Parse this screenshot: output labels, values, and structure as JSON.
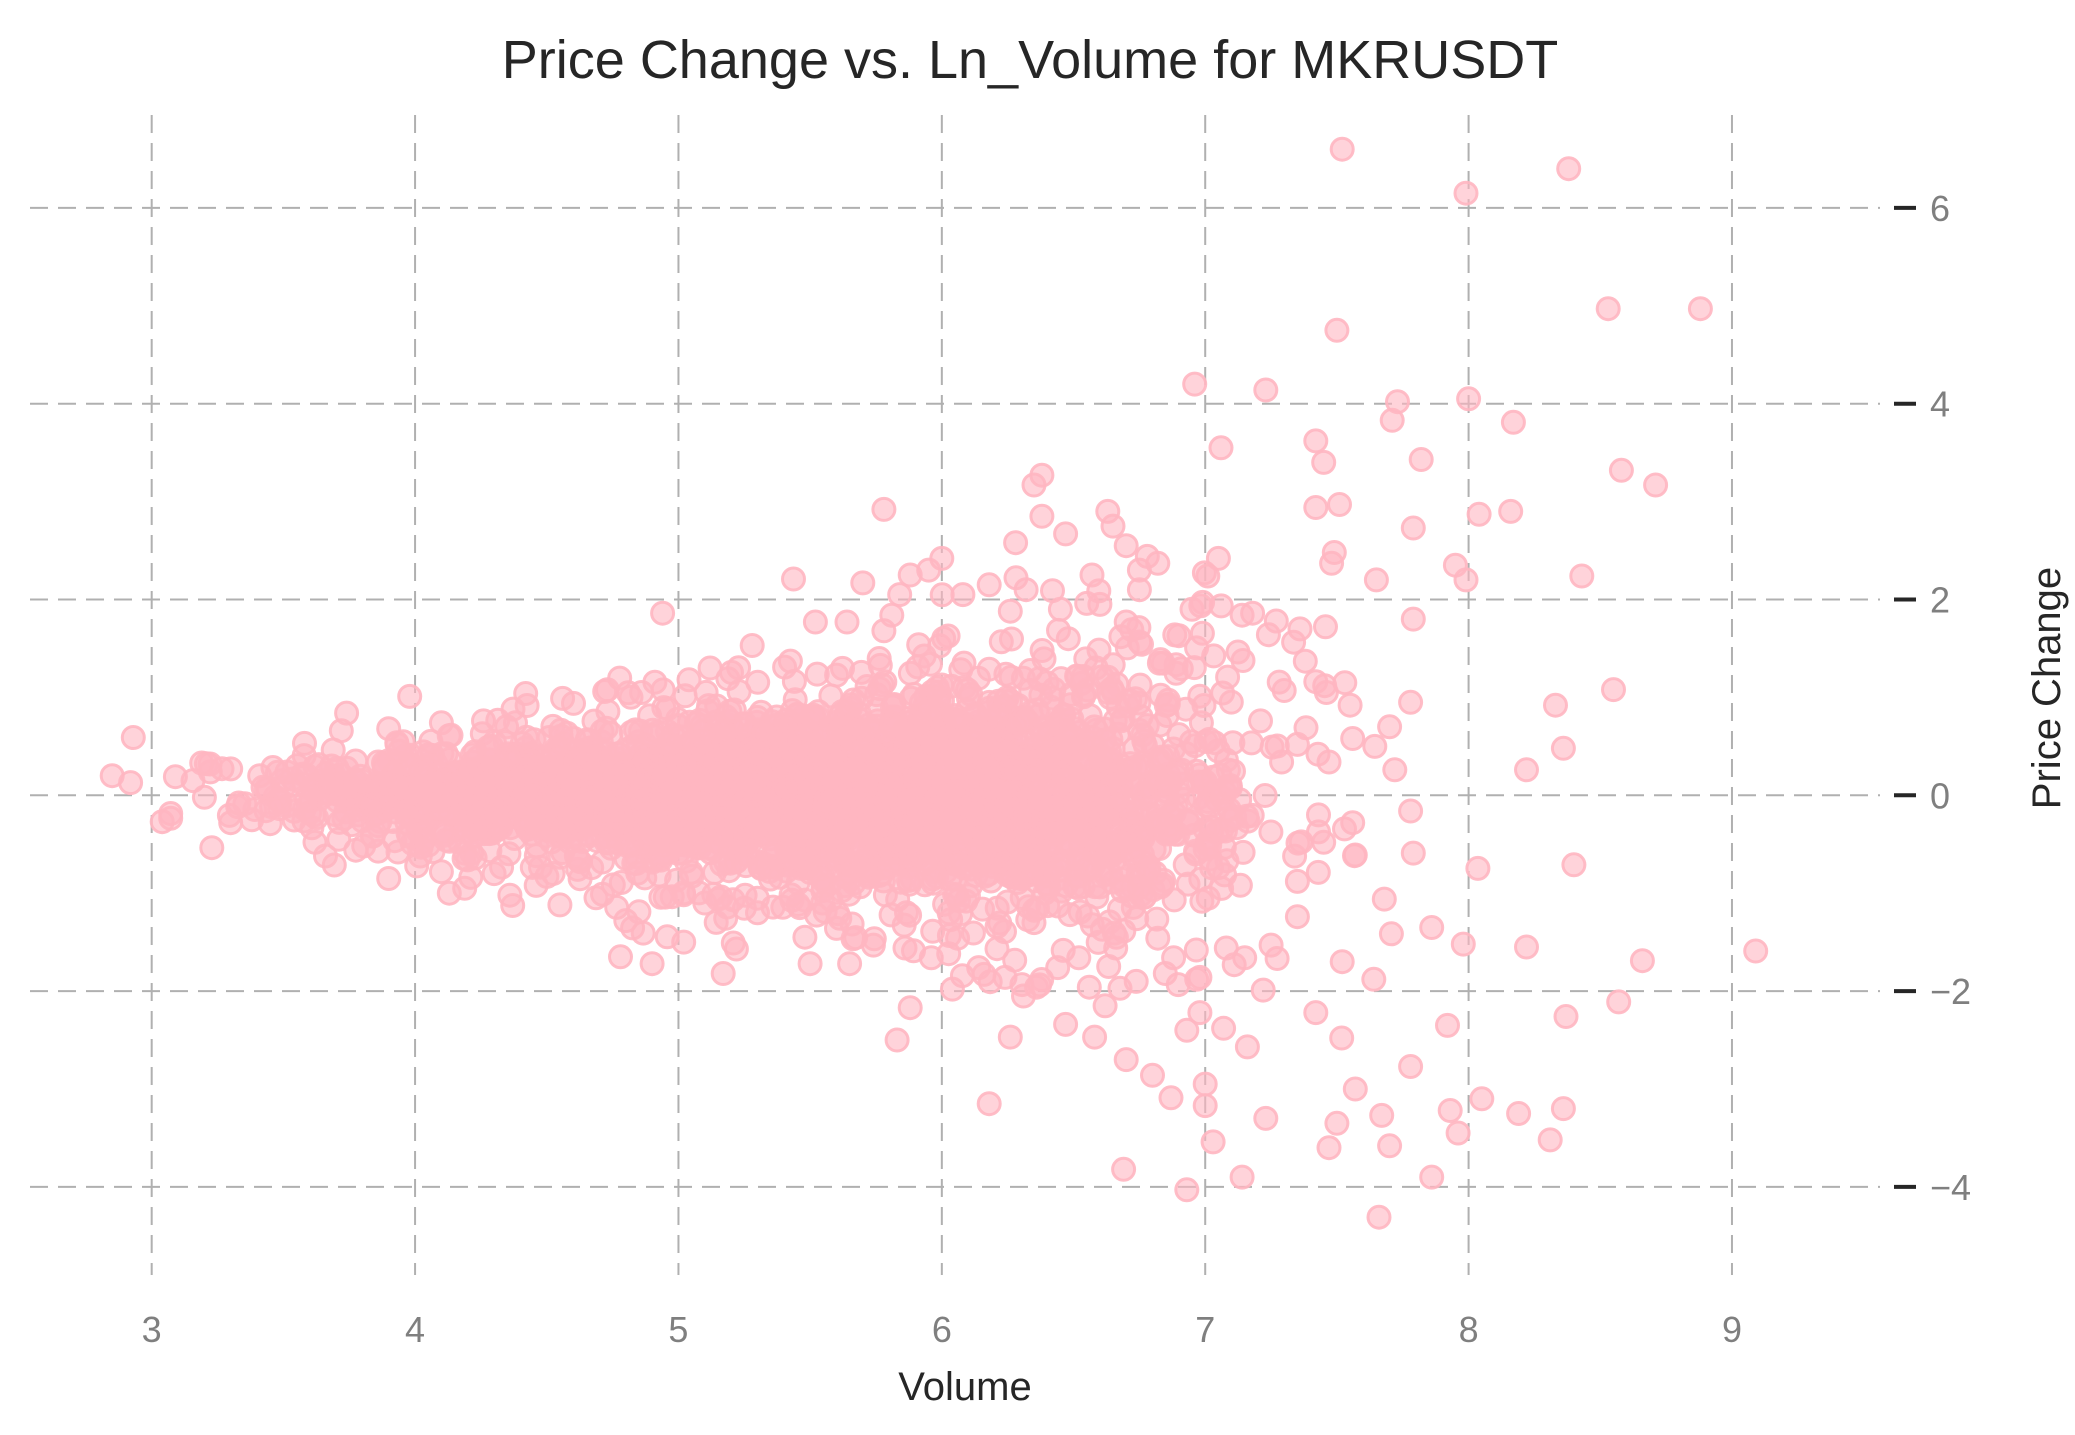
{
  "chart_data": {
    "type": "scatter",
    "title": "Price Change vs. Ln_Volume for MKRUSDT",
    "xlabel": "Volume",
    "ylabel": "Price Change",
    "xlim": [
      2.5,
      9.6
    ],
    "ylim": [
      -4.9,
      7.0
    ],
    "xticks": [
      3,
      4,
      5,
      6,
      7,
      8,
      9
    ],
    "yticks": [
      -4,
      -2,
      0,
      2,
      4,
      6
    ],
    "xtick_labels": [
      "3",
      "4",
      "5",
      "6",
      "7",
      "8",
      "9"
    ],
    "ytick_labels": [
      "−4",
      "−2",
      "0",
      "2",
      "4",
      "6"
    ],
    "y_axis_position": "right",
    "grid": true,
    "point_color": "#ffb6c1",
    "series": [
      {
        "values_xy": [
          [
            7.52,
            6.6
          ],
          [
            8.38,
            6.4
          ],
          [
            7.99,
            6.15
          ],
          [
            8.53,
            4.97
          ],
          [
            8.88,
            4.97
          ],
          [
            7.5,
            4.75
          ],
          [
            6.96,
            4.2
          ],
          [
            7.23,
            4.14
          ],
          [
            7.73,
            4.02
          ],
          [
            8.0,
            4.05
          ],
          [
            7.71,
            3.83
          ],
          [
            8.17,
            3.81
          ],
          [
            7.06,
            3.55
          ],
          [
            7.42,
            3.62
          ],
          [
            7.45,
            3.4
          ],
          [
            7.82,
            3.43
          ],
          [
            8.58,
            3.32
          ],
          [
            8.71,
            3.17
          ],
          [
            6.38,
            3.27
          ],
          [
            6.35,
            3.17
          ],
          [
            7.51,
            2.97
          ],
          [
            7.42,
            2.94
          ],
          [
            8.04,
            2.87
          ],
          [
            8.16,
            2.9
          ],
          [
            5.78,
            2.92
          ],
          [
            6.63,
            2.9
          ],
          [
            6.38,
            2.85
          ],
          [
            6.47,
            2.67
          ],
          [
            6.65,
            2.75
          ],
          [
            7.79,
            2.73
          ],
          [
            7.49,
            2.48
          ],
          [
            7.48,
            2.37
          ],
          [
            7.95,
            2.35
          ],
          [
            8.43,
            2.24
          ],
          [
            7.05,
            2.42
          ],
          [
            5.7,
            2.17
          ],
          [
            7.99,
            2.2
          ],
          [
            6.99,
            1.97
          ],
          [
            6.75,
            2.1
          ],
          [
            7.65,
            2.2
          ],
          [
            4.94,
            1.86
          ],
          [
            6.6,
            1.95
          ],
          [
            7.27,
            1.78
          ],
          [
            6.7,
            1.77
          ],
          [
            6.68,
            1.62
          ],
          [
            7.79,
            1.8
          ],
          [
            8.55,
            1.08
          ],
          [
            8.33,
            0.92
          ],
          [
            8.36,
            0.48
          ],
          [
            8.22,
            0.26
          ],
          [
            7.78,
            0.95
          ],
          [
            7.7,
            0.7
          ],
          [
            7.72,
            0.26
          ],
          [
            2.93,
            0.59
          ],
          [
            2.85,
            0.2
          ],
          [
            2.92,
            0.13
          ],
          [
            3.04,
            -0.27
          ],
          [
            3.09,
            0.19
          ],
          [
            3.19,
            0.33
          ],
          [
            3.2,
            -0.02
          ],
          [
            3.3,
            0.27
          ],
          [
            3.3,
            -0.28
          ],
          [
            3.38,
            -0.25
          ],
          [
            3.41,
            0.2
          ],
          [
            3.45,
            -0.29
          ],
          [
            3.58,
            0.53
          ],
          [
            3.74,
            0.84
          ],
          [
            3.72,
            0.66
          ],
          [
            3.71,
            -0.45
          ],
          [
            3.86,
            -0.57
          ],
          [
            3.9,
            -0.85
          ],
          [
            3.9,
            0.68
          ],
          [
            4.13,
            -1.0
          ],
          [
            4.36,
            -1.02
          ],
          [
            4.55,
            -1.12
          ],
          [
            4.78,
            -1.65
          ],
          [
            4.85,
            -1.19
          ],
          [
            4.9,
            -1.72
          ],
          [
            5.02,
            -1.5
          ],
          [
            5.22,
            -1.57
          ],
          [
            5.17,
            -1.82
          ],
          [
            5.5,
            -1.72
          ],
          [
            5.65,
            -1.72
          ],
          [
            5.83,
            -2.5
          ],
          [
            5.88,
            -2.17
          ],
          [
            6.04,
            -1.98
          ],
          [
            6.16,
            -1.83
          ],
          [
            6.18,
            -3.15
          ],
          [
            6.26,
            -2.47
          ],
          [
            6.31,
            -2.05
          ],
          [
            6.47,
            -2.34
          ],
          [
            6.58,
            -2.47
          ],
          [
            6.62,
            -2.15
          ],
          [
            6.7,
            -2.7
          ],
          [
            6.69,
            -3.82
          ],
          [
            6.8,
            -2.86
          ],
          [
            6.87,
            -3.09
          ],
          [
            6.93,
            -2.4
          ],
          [
            6.98,
            -2.22
          ],
          [
            7.0,
            -2.95
          ],
          [
            7.0,
            -3.17
          ],
          [
            7.03,
            -3.54
          ],
          [
            7.07,
            -2.38
          ],
          [
            6.93,
            -4.03
          ],
          [
            7.14,
            -3.9
          ],
          [
            7.16,
            -2.57
          ],
          [
            7.23,
            -3.3
          ],
          [
            7.22,
            -1.99
          ],
          [
            7.35,
            -1.24
          ],
          [
            7.42,
            -2.22
          ],
          [
            7.47,
            -3.6
          ],
          [
            7.5,
            -3.35
          ],
          [
            7.52,
            -1.7
          ],
          [
            7.57,
            -3.0
          ],
          [
            7.64,
            -1.88
          ],
          [
            7.67,
            -3.27
          ],
          [
            7.7,
            -3.58
          ],
          [
            7.66,
            -4.31
          ],
          [
            7.78,
            -2.77
          ],
          [
            7.86,
            -3.9
          ],
          [
            7.93,
            -3.22
          ],
          [
            7.96,
            -3.45
          ],
          [
            7.92,
            -2.35
          ],
          [
            7.98,
            -1.52
          ],
          [
            7.86,
            -1.35
          ],
          [
            8.05,
            -3.1
          ],
          [
            8.19,
            -3.25
          ],
          [
            8.22,
            -1.55
          ],
          [
            8.31,
            -3.52
          ],
          [
            8.36,
            -3.2
          ],
          [
            8.37,
            -2.26
          ],
          [
            8.4,
            -0.71
          ],
          [
            8.57,
            -2.11
          ],
          [
            8.66,
            -1.69
          ],
          [
            9.09,
            -1.59
          ],
          [
            7.68,
            -1.06
          ],
          [
            7.79,
            -0.59
          ],
          [
            7.78,
            -0.16
          ],
          [
            7.56,
            -0.28
          ],
          [
            7.57,
            -0.61
          ],
          [
            7.45,
            -0.48
          ],
          [
            7.53,
            1.15
          ],
          [
            7.55,
            0.92
          ],
          [
            7.56,
            0.58
          ],
          [
            7.47,
            0.34
          ],
          [
            7.35,
            0.52
          ],
          [
            7.29,
            0.34
          ],
          [
            7.3,
            1.07
          ],
          [
            7.21,
            0.76
          ],
          [
            7.14,
            1.84
          ],
          [
            7.18,
            1.86
          ],
          [
            7.24,
            1.64
          ],
          [
            7.36,
            1.7
          ],
          [
            7.38,
            1.37
          ],
          [
            7.42,
            1.16
          ],
          [
            7.46,
            1.05
          ],
          [
            7.43,
            -0.2
          ],
          [
            7.35,
            -0.88
          ],
          [
            7.25,
            -1.53
          ],
          [
            7.15,
            -1.66
          ],
          [
            7.11,
            -1.73
          ],
          [
            7.05,
            -0.74
          ],
          [
            7.0,
            -0.55
          ],
          [
            6.95,
            -0.26
          ],
          [
            6.9,
            0.62
          ],
          [
            6.86,
            0.93
          ],
          [
            6.84,
            1.35
          ],
          [
            6.9,
            1.63
          ],
          [
            6.95,
            1.9
          ],
          [
            7.01,
            2.24
          ],
          [
            6.78,
            2.44
          ],
          [
            6.82,
            2.37
          ],
          [
            6.75,
            2.3
          ],
          [
            6.7,
            2.55
          ],
          [
            6.57,
            2.25
          ],
          [
            6.55,
            1.96
          ],
          [
            6.48,
            1.6
          ],
          [
            6.45,
            1.9
          ],
          [
            6.42,
            2.09
          ],
          [
            6.32,
            2.1
          ],
          [
            6.28,
            2.58
          ],
          [
            6.26,
            1.88
          ],
          [
            6.18,
            2.15
          ],
          [
            6.08,
            2.05
          ],
          [
            6.0,
            2.42
          ],
          [
            5.95,
            2.3
          ],
          [
            5.88,
            2.25
          ],
          [
            5.84,
            2.05
          ],
          [
            5.81,
            1.84
          ],
          [
            5.78,
            1.68
          ],
          [
            5.64,
            1.77
          ],
          [
            5.52,
            1.77
          ],
          [
            5.28,
            1.53
          ],
          [
            5.12,
            1.3
          ],
          [
            5.04,
            1.18
          ],
          [
            4.86,
            1.05
          ],
          [
            4.72,
            1.06
          ],
          [
            4.42,
            1.04
          ],
          [
            4.56,
            0.99
          ],
          [
            4.26,
            0.76
          ],
          [
            4.1,
            0.74
          ],
          [
            4.06,
            0.55
          ],
          [
            3.94,
            0.45
          ],
          [
            3.86,
            0.34
          ],
          [
            3.8,
            0.15
          ],
          [
            3.68,
            0.1
          ],
          [
            3.6,
            -0.18
          ],
          [
            3.62,
            -0.48
          ],
          [
            3.66,
            -0.62
          ],
          [
            3.76,
            -0.3
          ],
          [
            3.84,
            -0.1
          ],
          [
            3.98,
            -0.42
          ],
          [
            4.02,
            -0.62
          ],
          [
            4.1,
            -0.78
          ],
          [
            4.2,
            -0.66
          ],
          [
            4.3,
            -0.8
          ],
          [
            4.46,
            -0.92
          ],
          [
            4.62,
            -0.66
          ],
          [
            4.8,
            -1.28
          ],
          [
            4.95,
            -1.04
          ],
          [
            5.1,
            -1.1
          ],
          [
            5.3,
            -1.2
          ],
          [
            5.48,
            -1.45
          ],
          [
            5.6,
            -1.36
          ],
          [
            5.74,
            -1.53
          ],
          [
            5.86,
            -1.56
          ],
          [
            5.96,
            -1.66
          ],
          [
            6.06,
            -1.46
          ],
          [
            6.14,
            -1.76
          ],
          [
            6.24,
            -1.86
          ],
          [
            6.36,
            -1.96
          ],
          [
            6.44,
            -1.76
          ],
          [
            6.52,
            -1.66
          ],
          [
            6.56,
            -1.96
          ],
          [
            6.66,
            -1.56
          ],
          [
            6.74,
            -1.26
          ],
          [
            6.82,
            -1.46
          ],
          [
            6.88,
            -1.66
          ],
          [
            6.98,
            -1.86
          ],
          [
            7.08,
            -1.56
          ]
        ],
        "cloud_clusters": [
          {
            "cx": 4.6,
            "cy": 0.0,
            "sx": 0.4,
            "sy": 0.28,
            "n": 800
          },
          {
            "cx": 5.4,
            "cy": 0.0,
            "sx": 0.42,
            "sy": 0.48,
            "n": 1200
          },
          {
            "cx": 6.15,
            "cy": 0.0,
            "sx": 0.36,
            "sy": 0.62,
            "n": 1000
          },
          {
            "cx": 6.75,
            "cy": 0.0,
            "sx": 0.3,
            "sy": 0.82,
            "n": 300
          },
          {
            "cx": 3.9,
            "cy": 0.0,
            "sx": 0.3,
            "sy": 0.2,
            "n": 200
          }
        ]
      }
    ]
  }
}
